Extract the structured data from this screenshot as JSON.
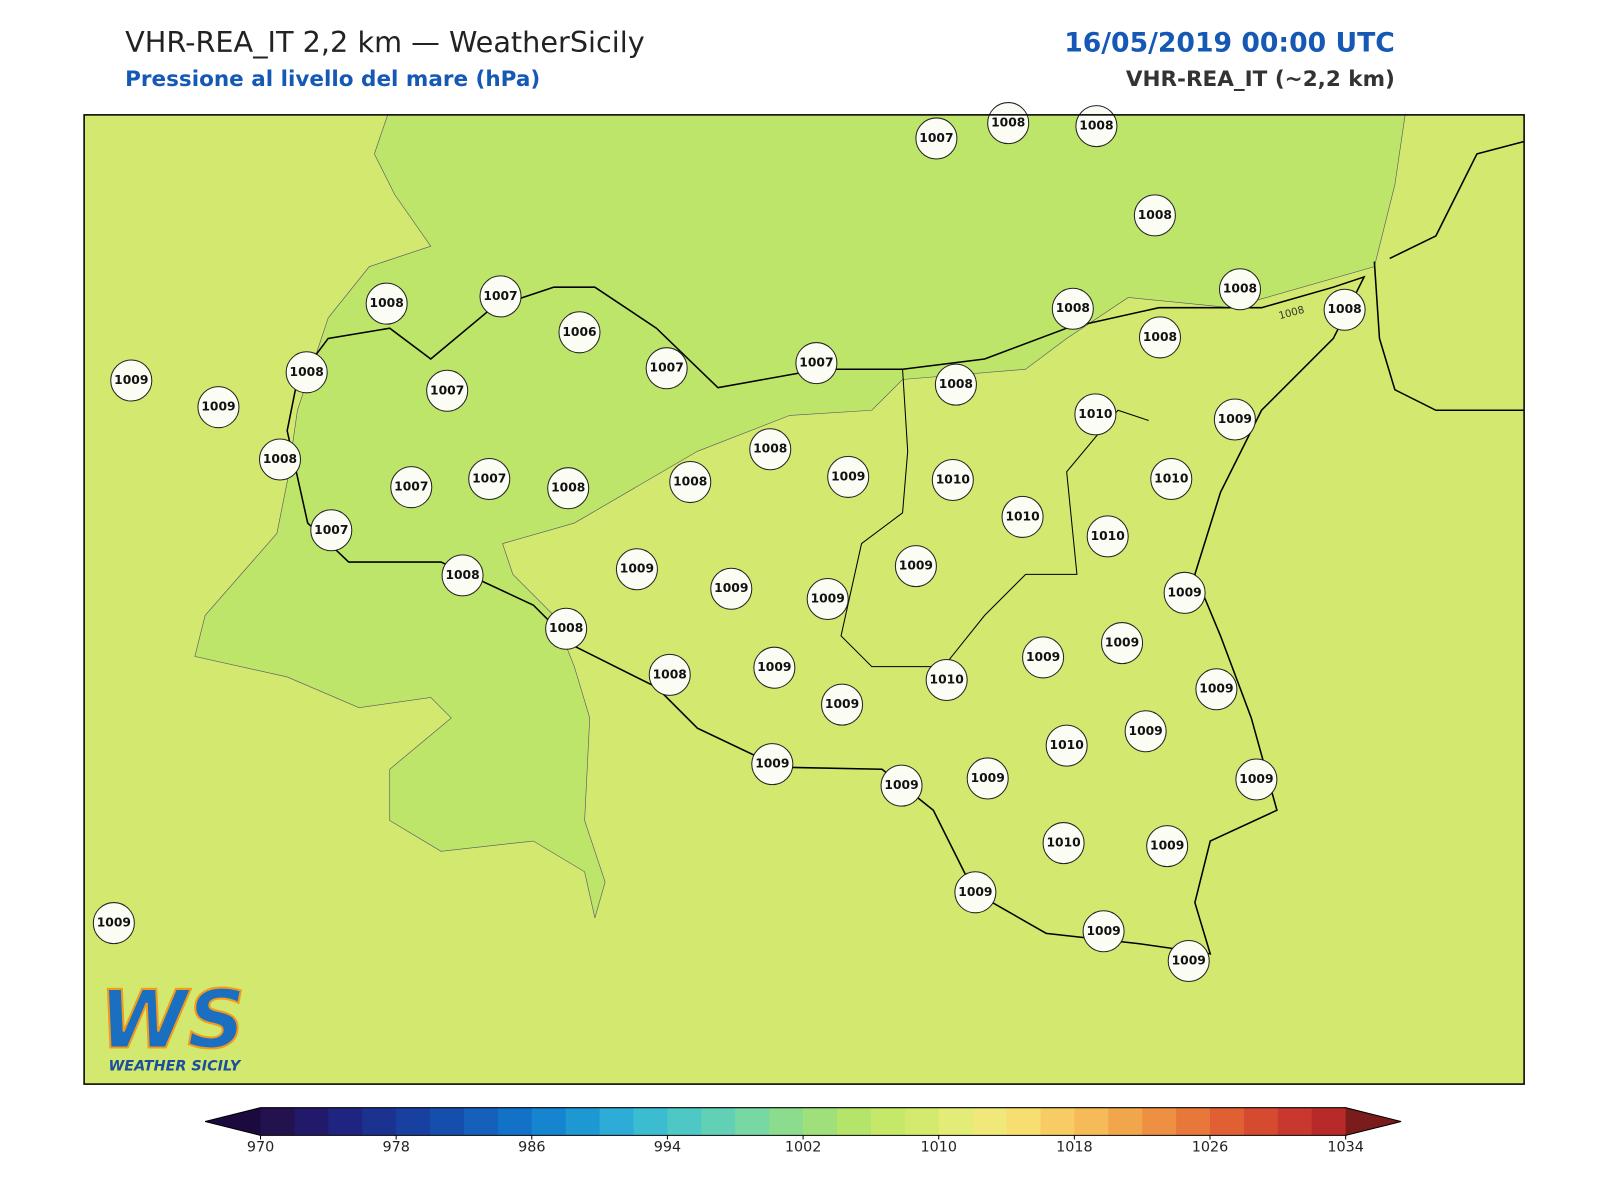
{
  "header": {
    "title": "VHR-REA_IT 2,2 km — WeatherSicily",
    "subtitle": "Pressione al livello del mare (hPa)",
    "date": "16/05/2019 00:00 UTC",
    "model": "VHR-REA_IT (~2,2 km)"
  },
  "map": {
    "contour_label": "1008",
    "stations": [
      1007,
      1008,
      1008,
      1008,
      1008,
      1008,
      1008,
      1008,
      1008,
      1007,
      1006,
      1007,
      1007,
      1008,
      1009,
      1009,
      1008,
      1007,
      1008,
      1007,
      1007,
      1008,
      1008,
      1008,
      1009,
      1010,
      1010,
      1009,
      1010,
      1010,
      1010,
      1007,
      1009,
      1009,
      1009,
      1009,
      1009,
      1008,
      1008,
      1008,
      1009,
      1009,
      1010,
      1009,
      1009,
      1009,
      1009,
      1010,
      1009,
      1009,
      1009,
      1009,
      1010,
      1009,
      1009,
      1009,
      1009,
      1009
    ],
    "land_color": "#d2e86e",
    "sea_color": "#bde56a"
  },
  "colorbar": {
    "range": [
      970,
      1034
    ],
    "ticks": [
      970,
      978,
      986,
      994,
      1002,
      1010,
      1018,
      1026,
      1034
    ],
    "colors": [
      "#24124f",
      "#23196a",
      "#1f2480",
      "#1b3290",
      "#1840a0",
      "#164eae",
      "#1460bb",
      "#1272c8",
      "#1585cf",
      "#1d98d3",
      "#2cacd6",
      "#3bbcd0",
      "#4ec8c4",
      "#62d0b4",
      "#78d8a3",
      "#8cdc8e",
      "#a0e07a",
      "#b4e46a",
      "#c6e868",
      "#d4ea6e",
      "#e2ec76",
      "#f0e878",
      "#f8de70",
      "#f8cc64",
      "#f6ba58",
      "#f2a64c",
      "#ee9042",
      "#e8783a",
      "#e06034",
      "#d64a30",
      "#c8382e",
      "#b82a2a"
    ],
    "under_color": "#1a0a3e",
    "over_color": "#7a1c1c"
  },
  "logo": {
    "mark": "WS",
    "text": "WEATHER SICILY"
  }
}
